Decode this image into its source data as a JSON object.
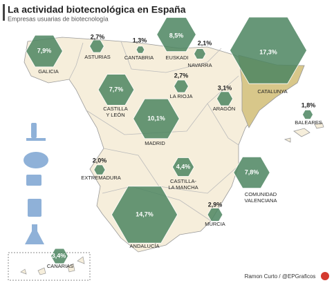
{
  "title": "La actividad biotecnológica en España",
  "subtitle": "Empresas usuarias  de biotecnología",
  "credit": "Ramon Curto / @EPGraficos",
  "hex_color": "#4c8560",
  "regions": [
    {
      "name": [
        "GALICIA"
      ],
      "value": 7.9,
      "value_label": "7,9%"
    },
    {
      "name": [
        "ASTURIAS"
      ],
      "value": 2.7,
      "value_label": "2,7%"
    },
    {
      "name": [
        "CANTABRIA"
      ],
      "value": 1.3,
      "value_label": "1,3%"
    },
    {
      "name": [
        "EUSKADI"
      ],
      "value": 8.5,
      "value_label": "8,5%"
    },
    {
      "name": [
        "NAVARRA"
      ],
      "value": 2.1,
      "value_label": "2,1%"
    },
    {
      "name": [
        "CATALUNYA"
      ],
      "value": 17.3,
      "value_label": "17,3%"
    },
    {
      "name": [
        "LA RIOJA"
      ],
      "value": 2.7,
      "value_label": "2,7%"
    },
    {
      "name": [
        "CASTILLA",
        "Y LEÓN"
      ],
      "value": 7.7,
      "value_label": "7,7%"
    },
    {
      "name": [
        "ARAGÓN"
      ],
      "value": 3.1,
      "value_label": "3,1%"
    },
    {
      "name": [
        "BALEARES"
      ],
      "value": 1.8,
      "value_label": "1,8%"
    },
    {
      "name": [
        "MADRID"
      ],
      "value": 10.1,
      "value_label": "10,1%"
    },
    {
      "name": [
        "EXTREMADURA"
      ],
      "value": 2.0,
      "value_label": "2,0%"
    },
    {
      "name": [
        "CASTILLA-",
        "LA MANCHA"
      ],
      "value": 4.4,
      "value_label": "4,4%"
    },
    {
      "name": [
        "COMUNIDAD",
        "VALENCIANA"
      ],
      "value": 7.8,
      "value_label": "7,8%"
    },
    {
      "name": [
        "ANDALUCÍA"
      ],
      "value": 14.7,
      "value_label": "14,7%"
    },
    {
      "name": [
        "MURCIA"
      ],
      "value": 2.9,
      "value_label": "2,9%"
    },
    {
      "name": [
        "CANARIAS"
      ],
      "value": 3.4,
      "value_label": "3,4%"
    }
  ]
}
